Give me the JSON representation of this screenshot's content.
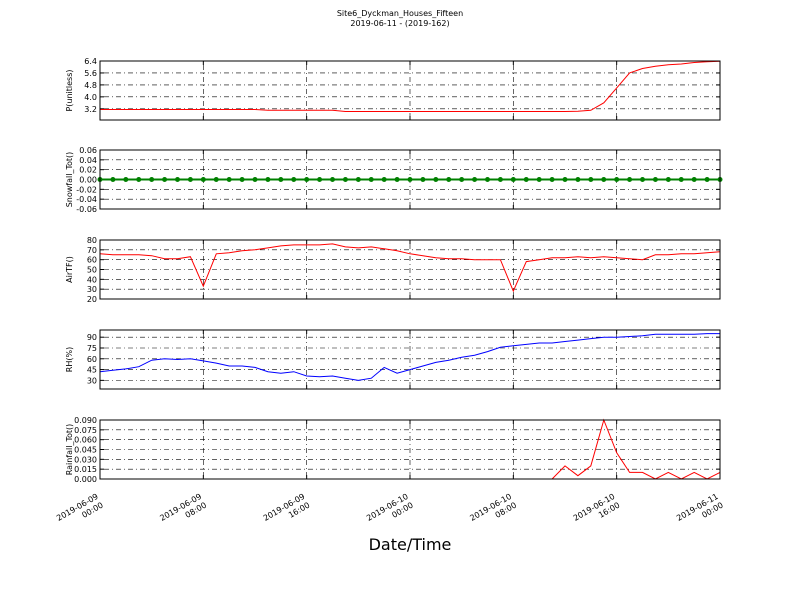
{
  "title": "Site6_Dyckman_Houses_Fifteen",
  "subtitle": "2019-06-11 - (2019-162)",
  "xlabel": "Date/Time",
  "xlim": [
    "2019-06-09 00:00",
    "2019-06-11 00:00"
  ],
  "xticks": [
    {
      "value": "2019-06-09 00:00",
      "label": [
        "2019-06-09",
        "00:00"
      ]
    },
    {
      "value": "2019-06-09 08:00",
      "label": [
        "2019-06-09",
        "08:00"
      ]
    },
    {
      "value": "2019-06-09 16:00",
      "label": [
        "2019-06-09",
        "16:00"
      ]
    },
    {
      "value": "2019-06-10 00:00",
      "label": [
        "2019-06-10",
        "00:00"
      ]
    },
    {
      "value": "2019-06-10 08:00",
      "label": [
        "2019-06-10",
        "08:00"
      ]
    },
    {
      "value": "2019-06-10 16:00",
      "label": [
        "2019-06-10",
        "16:00"
      ]
    },
    {
      "value": "2019-06-11 00:00",
      "label": [
        "2019-06-11",
        "00:00"
      ]
    }
  ],
  "x": [
    "2019-06-09 00:00",
    "2019-06-09 01:00",
    "2019-06-09 02:00",
    "2019-06-09 03:00",
    "2019-06-09 04:00",
    "2019-06-09 05:00",
    "2019-06-09 06:00",
    "2019-06-09 07:00",
    "2019-06-09 08:00",
    "2019-06-09 09:00",
    "2019-06-09 10:00",
    "2019-06-09 11:00",
    "2019-06-09 12:00",
    "2019-06-09 13:00",
    "2019-06-09 14:00",
    "2019-06-09 15:00",
    "2019-06-09 16:00",
    "2019-06-09 17:00",
    "2019-06-09 18:00",
    "2019-06-09 19:00",
    "2019-06-09 20:00",
    "2019-06-09 21:00",
    "2019-06-09 22:00",
    "2019-06-09 23:00",
    "2019-06-10 00:00",
    "2019-06-10 01:00",
    "2019-06-10 02:00",
    "2019-06-10 03:00",
    "2019-06-10 04:00",
    "2019-06-10 05:00",
    "2019-06-10 06:00",
    "2019-06-10 07:00",
    "2019-06-10 08:00",
    "2019-06-10 09:00",
    "2019-06-10 10:00",
    "2019-06-10 11:00",
    "2019-06-10 12:00",
    "2019-06-10 13:00",
    "2019-06-10 14:00",
    "2019-06-10 15:00",
    "2019-06-10 16:00",
    "2019-06-10 17:00",
    "2019-06-10 18:00",
    "2019-06-10 19:00",
    "2019-06-10 20:00",
    "2019-06-10 21:00",
    "2019-06-10 22:00",
    "2019-06-10 23:00",
    "2019-06-11 00:00"
  ],
  "chart_data": [
    {
      "type": "line",
      "ylabel": "P(unitless)",
      "color": "#ff0000",
      "grid": true,
      "ylim": [
        2.45,
        6.4
      ],
      "yticks": [
        3.2,
        {
          "value": 4.0,
          "label": "4.0"
        },
        4.8,
        5.6,
        6.4
      ],
      "values": [
        3.15,
        3.15,
        3.15,
        3.15,
        3.15,
        3.15,
        3.15,
        3.15,
        3.15,
        3.15,
        3.15,
        3.15,
        3.15,
        3.1,
        3.1,
        3.1,
        3.1,
        3.1,
        3.1,
        3.02,
        3.02,
        3.02,
        3.02,
        3.02,
        3.02,
        3.02,
        3.02,
        3.02,
        3.02,
        3.02,
        3.02,
        3.02,
        3.02,
        3.02,
        3.02,
        3.02,
        3.02,
        3.03,
        3.1,
        3.6,
        4.6,
        5.6,
        5.9,
        6.05,
        6.15,
        6.2,
        6.3,
        6.35,
        6.38
      ]
    },
    {
      "type": "line",
      "ylabel": "Snowfall_Tot()",
      "color": "#008000",
      "grid": true,
      "markers": true,
      "ylim": [
        -0.06,
        0.06
      ],
      "yticks": [
        -0.06,
        -0.04,
        -0.02,
        {
          "value": 0,
          "label": "0.00"
        },
        0.02,
        0.04,
        0.06
      ],
      "values": [
        0,
        0,
        0,
        0,
        0,
        0,
        0,
        0,
        0,
        0,
        0,
        0,
        0,
        0,
        0,
        0,
        0,
        0,
        0,
        0,
        0,
        0,
        0,
        0,
        0,
        0,
        0,
        0,
        0,
        0,
        0,
        0,
        0,
        0,
        0,
        0,
        0,
        0,
        0,
        0,
        0,
        0,
        0,
        0,
        0,
        0,
        0,
        0,
        0
      ]
    },
    {
      "type": "line",
      "ylabel": "AirTF()",
      "color": "#ff0000",
      "grid": true,
      "ylim": [
        20,
        80
      ],
      "yticks": [
        20,
        30,
        40,
        50,
        60,
        70,
        80
      ],
      "values": [
        66,
        65,
        65,
        65,
        64,
        61,
        61,
        63,
        33,
        66,
        67,
        69,
        70,
        72,
        74,
        75,
        75,
        75,
        76,
        73,
        72,
        73,
        71,
        69,
        66,
        64,
        62,
        61,
        61,
        60,
        60,
        60,
        28,
        58,
        60,
        62,
        62,
        63,
        62,
        63,
        62,
        61,
        60,
        65,
        65,
        66,
        66,
        67,
        68
      ]
    },
    {
      "type": "line",
      "ylabel": "RH(%)",
      "color": "#0000ff",
      "grid": true,
      "ylim": [
        18,
        100
      ],
      "yticks": [
        30,
        45,
        60,
        75,
        90
      ],
      "values": [
        42,
        44,
        46,
        49,
        58,
        60,
        59,
        60,
        57,
        54,
        50,
        50,
        48,
        42,
        40,
        42,
        36,
        35,
        36,
        33,
        30,
        33,
        48,
        40,
        45,
        50,
        55,
        58,
        62,
        65,
        70,
        76,
        78,
        80,
        82,
        82,
        84,
        86,
        88,
        90,
        90,
        91,
        92,
        94,
        94,
        94,
        94,
        95,
        95
      ]
    },
    {
      "type": "line",
      "ylabel": "Rainfall_Tot()",
      "color": "#ff0000",
      "grid": true,
      "ylim": [
        0,
        0.09
      ],
      "yticks": [
        {
          "value": 0,
          "label": "0.000"
        },
        0.015,
        {
          "value": 0.03,
          "label": "0.030"
        },
        0.045,
        {
          "value": 0.06,
          "label": "0.060"
        },
        0.075,
        {
          "value": 0.09,
          "label": "0.090"
        }
      ],
      "values": [
        0,
        0,
        0,
        0,
        0,
        0,
        0,
        0,
        0,
        0,
        0,
        0,
        0,
        0,
        0,
        0,
        0,
        0,
        0,
        0,
        0,
        0,
        0,
        0,
        0,
        0,
        0,
        0,
        0,
        0,
        0,
        0,
        0,
        0,
        0,
        0,
        0.02,
        0.005,
        0.02,
        0.09,
        0.04,
        0.01,
        0.01,
        0,
        0.01,
        0,
        0.01,
        0,
        0.01
      ]
    }
  ]
}
